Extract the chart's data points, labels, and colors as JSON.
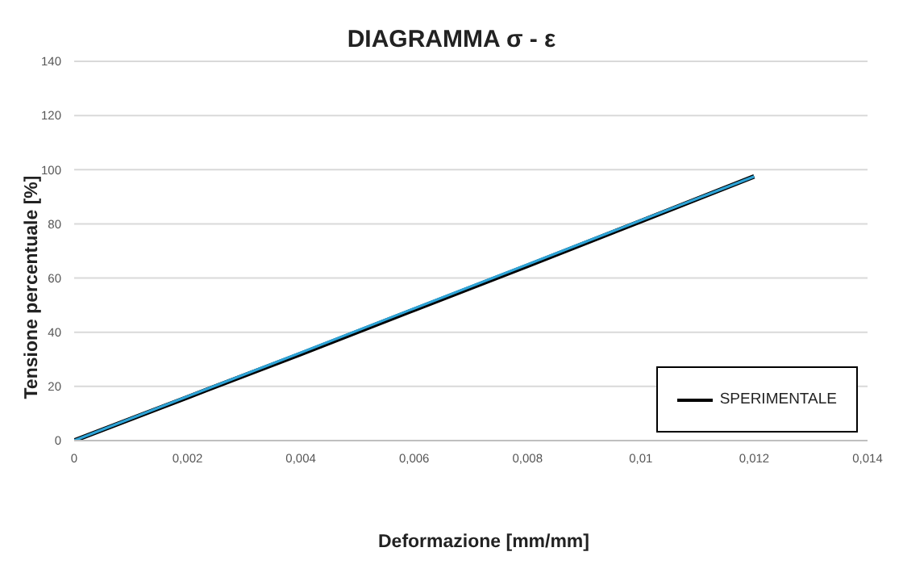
{
  "chart_data": {
    "type": "line",
    "title": "DIAGRAMMA σ - ε",
    "xlabel": "Deformazione [mm/mm]",
    "ylabel": "Tensione percentuale [%]",
    "x": [
      0,
      0.002,
      0.004,
      0.006,
      0.008,
      0.01,
      0.012
    ],
    "series": [
      {
        "name": "SPERIMENTALE",
        "color": "#000000",
        "values": [
          0,
          16,
          32,
          48.3,
          64.5,
          81,
          97.5
        ]
      },
      {
        "color": "#2ea3d6",
        "values": [
          0,
          16.3,
          32.5,
          48.8,
          65,
          81.3,
          97.5
        ]
      }
    ],
    "xlim": [
      0,
      0.014
    ],
    "xticks": [
      0,
      {
        "value": 0.002,
        "label": "0,002"
      },
      {
        "value": 0.004,
        "label": "0,004"
      },
      {
        "value": 0.006,
        "label": "0,006"
      },
      {
        "value": 0.008,
        "label": "0,008"
      },
      {
        "value": 0.01,
        "label": "0,01"
      },
      {
        "value": 0.012,
        "label": "0,012"
      },
      {
        "value": 0.014,
        "label": "0,014"
      }
    ],
    "ylim": [
      0,
      140
    ],
    "yticks": [
      0,
      20,
      40,
      60,
      80,
      100,
      120,
      140
    ],
    "grid": "y",
    "legend": "bottom right",
    "marker": "none",
    "line_style": "solid"
  }
}
